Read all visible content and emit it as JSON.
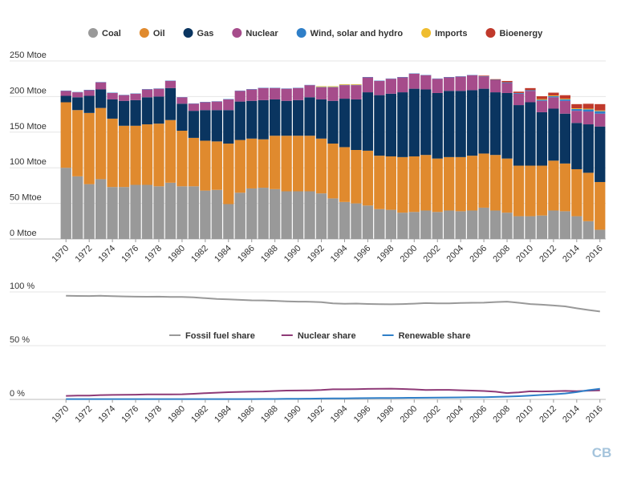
{
  "chart_data": [
    {
      "type": "bar",
      "stacked": true,
      "years": [
        1970,
        1971,
        1972,
        1973,
        1974,
        1975,
        1976,
        1977,
        1978,
        1979,
        1980,
        1981,
        1982,
        1983,
        1984,
        1985,
        1986,
        1987,
        1988,
        1989,
        1990,
        1991,
        1992,
        1993,
        1994,
        1995,
        1996,
        1997,
        1998,
        1999,
        2000,
        2001,
        2002,
        2003,
        2004,
        2005,
        2006,
        2007,
        2008,
        2009,
        2010,
        2011,
        2012,
        2013,
        2014,
        2015,
        2016
      ],
      "x_tick_labels": [
        "1970",
        "1972",
        "1974",
        "1976",
        "1978",
        "1980",
        "1982",
        "1984",
        "1986",
        "1988",
        "1990",
        "1992",
        "1994",
        "1996",
        "1998",
        "2000",
        "2002",
        "2004",
        "2006",
        "2008",
        "2010",
        "2012",
        "2014",
        "2016"
      ],
      "y_tick_labels": [
        "0 Mtoe",
        "50 Mtoe",
        "100 Mtoe",
        "150 Mtoe",
        "200 Mtoe",
        "250 Mtoe"
      ],
      "ylim": [
        0,
        250
      ],
      "unit": "Mtoe",
      "grid": true,
      "legend_position": "top",
      "series": [
        {
          "name": "Coal",
          "color": "#999999",
          "values": [
            100,
            88,
            77,
            84,
            73,
            73,
            76,
            76,
            74,
            79,
            74,
            74,
            68,
            69,
            49,
            65,
            71,
            72,
            70,
            67,
            67,
            67,
            64,
            57,
            52,
            50,
            47,
            42,
            41,
            37,
            38,
            40,
            38,
            40,
            39,
            40,
            44,
            40,
            37,
            32,
            32,
            33,
            40,
            39,
            32,
            25,
            13
          ]
        },
        {
          "name": "Oil",
          "color": "#e08a2e",
          "values": [
            92,
            93,
            100,
            100,
            96,
            86,
            83,
            85,
            88,
            88,
            78,
            68,
            70,
            68,
            85,
            74,
            70,
            68,
            75,
            78,
            78,
            78,
            77,
            77,
            77,
            75,
            77,
            75,
            75,
            78,
            78,
            78,
            75,
            75,
            76,
            77,
            76,
            78,
            76,
            71,
            71,
            70,
            70,
            67,
            66,
            68,
            67
          ]
        },
        {
          "name": "Gas",
          "color": "#0a3560",
          "values": [
            9,
            18,
            24,
            26,
            27,
            35,
            36,
            38,
            38,
            45,
            38,
            38,
            43,
            44,
            47,
            54,
            53,
            55,
            51,
            49,
            50,
            54,
            55,
            60,
            68,
            71,
            82,
            85,
            88,
            91,
            95,
            92,
            92,
            93,
            93,
            92,
            91,
            88,
            92,
            85,
            89,
            75,
            73,
            70,
            65,
            68,
            78
          ]
        },
        {
          "name": "Nuclear",
          "color": "#a64c8b",
          "values": [
            7,
            7,
            8,
            10,
            9,
            8,
            9,
            11,
            11,
            10,
            9,
            10,
            11,
            12,
            15,
            15,
            16,
            17,
            16,
            17,
            17,
            17,
            17,
            19,
            19,
            20,
            21,
            20,
            21,
            21,
            21,
            20,
            20,
            19,
            20,
            21,
            17,
            17,
            14,
            16,
            16,
            16,
            16,
            18,
            17,
            18,
            18
          ]
        },
        {
          "name": "Wind, solar and hydro",
          "color": "#2f7fc8",
          "values": [
            0.5,
            0.5,
            0.5,
            0.5,
            0.5,
            0.5,
            0.5,
            0.5,
            0.5,
            0.5,
            0.5,
            0.5,
            0.5,
            0.5,
            0.5,
            0.5,
            0.5,
            0.5,
            0.5,
            0.5,
            0.5,
            0.5,
            0.5,
            0.5,
            0.5,
            0.5,
            0.5,
            0.5,
            0.5,
            0.5,
            0.5,
            0.5,
            0.5,
            0.5,
            0.5,
            0.5,
            0.5,
            0.5,
            1,
            1,
            1,
            1.5,
            1.5,
            2,
            2.5,
            3,
            3.5
          ]
        },
        {
          "name": "Imports",
          "color": "#efbd2f",
          "values": [
            0,
            0,
            0,
            0,
            0,
            0,
            0,
            0,
            0,
            0,
            0,
            0,
            0,
            0,
            0,
            0,
            0,
            0,
            0,
            0,
            0,
            0,
            1,
            1,
            1,
            1,
            0,
            0,
            0,
            0,
            0,
            0,
            0,
            0,
            0,
            0,
            0,
            0,
            0,
            0,
            0,
            1,
            1,
            1,
            1,
            1,
            1
          ]
        },
        {
          "name": "Bioenergy",
          "color": "#c0392b",
          "values": [
            0,
            0,
            0,
            0,
            0,
            0,
            0,
            0,
            0,
            0,
            0,
            0,
            0,
            0,
            0,
            0,
            0,
            0,
            0,
            0,
            0,
            0,
            0,
            0,
            0,
            0,
            0,
            0,
            0,
            0,
            0,
            0,
            0,
            0,
            0,
            0,
            1,
            1,
            2,
            2,
            3,
            4,
            4,
            5,
            6,
            7,
            9
          ]
        }
      ]
    },
    {
      "type": "line",
      "years": [
        1970,
        1971,
        1972,
        1973,
        1974,
        1975,
        1976,
        1977,
        1978,
        1979,
        1980,
        1981,
        1982,
        1983,
        1984,
        1985,
        1986,
        1987,
        1988,
        1989,
        1990,
        1991,
        1992,
        1993,
        1994,
        1995,
        1996,
        1997,
        1998,
        1999,
        2000,
        2001,
        2002,
        2003,
        2004,
        2005,
        2006,
        2007,
        2008,
        2009,
        2010,
        2011,
        2012,
        2013,
        2014,
        2015,
        2016
      ],
      "x_tick_labels": [
        "1970",
        "1972",
        "1974",
        "1976",
        "1978",
        "1980",
        "1982",
        "1984",
        "1986",
        "1988",
        "1990",
        "1992",
        "1994",
        "1996",
        "1998",
        "2000",
        "2002",
        "2004",
        "2006",
        "2008",
        "2010",
        "2012",
        "2014",
        "2016"
      ],
      "y_tick_labels": [
        "0 %",
        "50 %",
        "100 %"
      ],
      "ylim": [
        0,
        100
      ],
      "unit": "%",
      "grid": true,
      "legend_position": "middle",
      "series": [
        {
          "name": "Fossil fuel share",
          "color": "#999999",
          "values": [
            96.5,
            96.3,
            96.2,
            96.4,
            96.1,
            95.8,
            95.6,
            95.5,
            95.6,
            95.4,
            95.3,
            95.0,
            94.2,
            93.5,
            93.1,
            92.6,
            92.2,
            92.1,
            91.7,
            91.3,
            91.0,
            90.9,
            90.5,
            89.3,
            89.0,
            89.2,
            88.8,
            88.6,
            88.5,
            88.7,
            89.1,
            89.6,
            89.3,
            89.4,
            89.8,
            89.9,
            90.0,
            90.6,
            91.0,
            89.9,
            88.7,
            88.1,
            87.4,
            86.6,
            84.8,
            83.2,
            81.8
          ]
        },
        {
          "name": "Nuclear share",
          "color": "#8e3a77",
          "values": [
            3.3,
            3.5,
            3.6,
            4.0,
            4.2,
            4.3,
            4.4,
            4.6,
            4.7,
            4.7,
            4.8,
            5.2,
            5.8,
            6.3,
            6.7,
            7.0,
            7.3,
            7.4,
            7.8,
            8.2,
            8.3,
            8.4,
            8.7,
            9.4,
            9.4,
            9.5,
            9.8,
            9.9,
            10.0,
            9.7,
            9.3,
            8.8,
            8.9,
            8.9,
            8.5,
            8.2,
            7.8,
            7.2,
            5.9,
            6.5,
            7.5,
            7.4,
            7.6,
            7.9,
            7.7,
            8.1,
            8.4
          ]
        },
        {
          "name": "Renewable share",
          "color": "#2f7fc8",
          "values": [
            0.3,
            0.3,
            0.3,
            0.3,
            0.3,
            0.3,
            0.3,
            0.3,
            0.3,
            0.3,
            0.3,
            0.3,
            0.3,
            0.3,
            0.3,
            0.3,
            0.3,
            0.4,
            0.4,
            0.5,
            0.6,
            0.7,
            0.8,
            0.9,
            1.0,
            1.1,
            1.2,
            1.3,
            1.3,
            1.4,
            1.5,
            1.6,
            1.7,
            1.8,
            1.9,
            2.0,
            2.1,
            2.3,
            2.6,
            3.0,
            3.6,
            4.2,
            4.8,
            5.5,
            6.8,
            8.6,
            9.9
          ]
        }
      ]
    }
  ],
  "logo": {
    "text": "CB"
  }
}
